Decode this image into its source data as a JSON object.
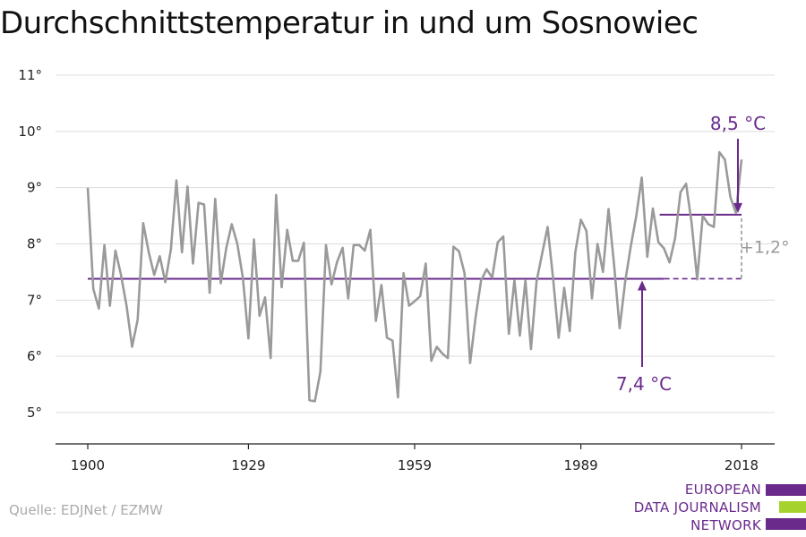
{
  "title": "Durchschnittstemperatur in und um Sosnowiec",
  "source": "Quelle: EDJNet / EZMW",
  "logo": {
    "lines": [
      "EUROPEAN",
      "DATA JOURNALISM",
      "NETWORK"
    ],
    "colors": [
      "#6a2a8c",
      "#a6d22e",
      "#6a2a8c"
    ]
  },
  "colors": {
    "series": "#9a9a9a",
    "accent": "#6a2a8c",
    "grid": "#dddddd",
    "axis": "#222222"
  },
  "chart_data": {
    "type": "line",
    "title": "Durchschnittstemperatur in und um Sosnowiec",
    "xlabel": "",
    "ylabel": "",
    "xlim": [
      1900,
      2018
    ],
    "ylim": [
      4.5,
      11
    ],
    "x_ticks": [
      1900,
      1929,
      1959,
      1989,
      2018
    ],
    "y_ticks": [
      5,
      6,
      7,
      8,
      9,
      10,
      11
    ],
    "y_tick_labels": [
      "5°",
      "6°",
      "7°",
      "8°",
      "9°",
      "10°",
      "11°"
    ],
    "grid": true,
    "series": [
      {
        "x_start": 1900,
        "x_end": 2018,
        "values": [
          9.0,
          7.2,
          6.85,
          7.98,
          6.9,
          7.88,
          7.45,
          6.9,
          6.17,
          6.65,
          8.37,
          7.85,
          7.45,
          7.78,
          7.32,
          7.9,
          9.13,
          7.85,
          9.02,
          7.65,
          8.73,
          8.7,
          7.13,
          8.8,
          7.3,
          7.93,
          8.35,
          8.0,
          7.4,
          6.32,
          8.08,
          6.72,
          7.05,
          5.97,
          8.87,
          7.23,
          8.25,
          7.7,
          7.7,
          8.02,
          5.22,
          5.2,
          5.73,
          7.98,
          7.28,
          7.68,
          7.93,
          7.03,
          7.98,
          7.98,
          7.88,
          8.25,
          6.63,
          7.27,
          6.33,
          6.28,
          5.27,
          7.48,
          6.9,
          6.98,
          7.07,
          7.65,
          5.92,
          6.17,
          6.05,
          5.97,
          7.95,
          7.87,
          7.48,
          5.88,
          6.7,
          7.35,
          7.55,
          7.4,
          8.03,
          8.13,
          6.4,
          7.35,
          6.37,
          7.35,
          6.13,
          7.33,
          7.82,
          8.3,
          7.37,
          6.33,
          7.22,
          6.45,
          7.85,
          8.43,
          8.23,
          7.03,
          8.0,
          7.5,
          8.62,
          7.63,
          6.5,
          7.33,
          7.95,
          8.5,
          9.18,
          7.77,
          8.63,
          8.03,
          7.92,
          7.67,
          8.1,
          8.92,
          9.07,
          8.37,
          7.37,
          8.5,
          8.35,
          8.3,
          9.63,
          9.5,
          8.83,
          8.55,
          9.5
        ]
      }
    ],
    "reference_lines": [
      {
        "label": "7,4 °C",
        "value": 7.38,
        "from": 1900,
        "solid_to": 2000,
        "to": 2018
      },
      {
        "label": "8,5 °C",
        "value": 8.52,
        "from": 2000,
        "to": 2018
      }
    ],
    "difference_label": "+1,2°"
  }
}
